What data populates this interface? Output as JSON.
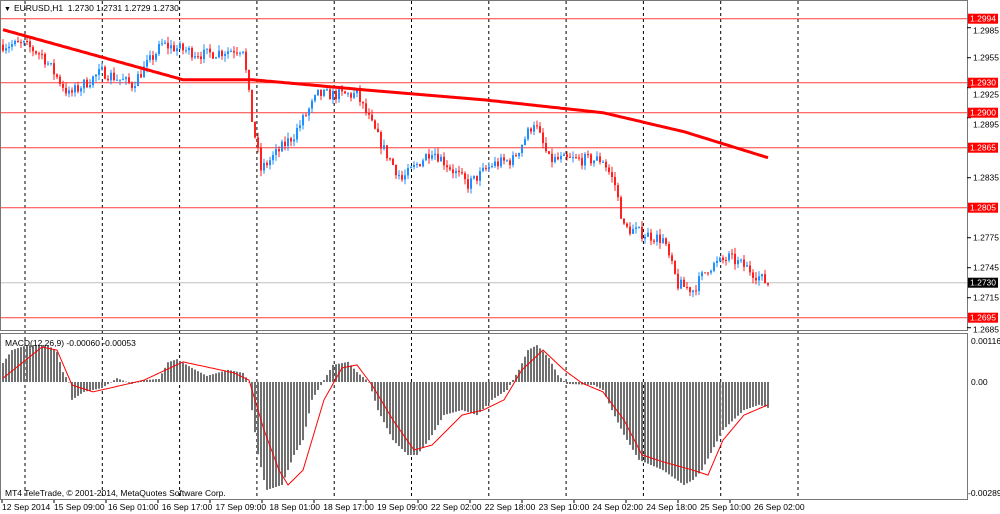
{
  "header": {
    "symbol": "EURUSD,H1",
    "ohlc": "1.2730 1.2731 1.2729 1.2730"
  },
  "macd_label": "MACD(12,26,9) -0.00060 -0.00053",
  "copyright": "MT4 TeleTrade, © 2001-2014, MetaQuotes Software Corp.",
  "colors": {
    "bull": "#1e90ff",
    "bear": "#ff2020",
    "ma": "#ff0000",
    "level": "#ff3b3b",
    "hist": "#707070",
    "signal": "#ff0000"
  },
  "price_axis": {
    "range": [
      1.268,
      1.3012
    ],
    "ticks": [
      "1.2985",
      "1.2955",
      "1.2925",
      "1.2895",
      "1.2835",
      "1.2775",
      "1.2745",
      "1.2715",
      "1.2685"
    ],
    "levels": [
      "1.2994",
      "1.2930",
      "1.2900",
      "1.2865",
      "1.2805",
      "1.2695"
    ],
    "current": "1.2730"
  },
  "macd_axis": {
    "top": "0.00116",
    "zero": "0.00",
    "bottom": "-0.00289"
  },
  "time_labels": [
    "12 Sep 2014",
    "15 Sep 09:00",
    "16 Sep 01:00",
    "16 Sep 17:00",
    "17 Sep 09:00",
    "18 Sep 01:00",
    "18 Sep 17:00",
    "19 Sep 09:00",
    "22 Sep 02:00",
    "22 Sep 18:00",
    "23 Sep 10:00",
    "24 Sep 02:00",
    "24 Sep 18:00",
    "25 Sep 10:00",
    "26 Sep 02:00"
  ],
  "chart_data": {
    "type": "candlestick",
    "bars": 256,
    "close_path": [
      [
        0,
        1.2968
      ],
      [
        7,
        1.2968
      ],
      [
        13,
        1.2958
      ],
      [
        22,
        1.2918
      ],
      [
        33,
        1.2941
      ],
      [
        43,
        1.2928
      ],
      [
        53,
        1.2968
      ],
      [
        67,
        1.2958
      ],
      [
        80,
        1.2965
      ],
      [
        83,
        1.2893
      ],
      [
        86,
        1.2843
      ],
      [
        97,
        1.2878
      ],
      [
        105,
        1.2918
      ],
      [
        118,
        1.2918
      ],
      [
        127,
        1.2863
      ],
      [
        133,
        1.2833
      ],
      [
        143,
        1.2863
      ],
      [
        155,
        1.2828
      ],
      [
        163,
        1.2848
      ],
      [
        170,
        1.2853
      ],
      [
        177,
        1.2891
      ],
      [
        182,
        1.2853
      ],
      [
        200,
        1.2853
      ],
      [
        204,
        1.2828
      ],
      [
        207,
        1.2785
      ],
      [
        220,
        1.2773
      ],
      [
        225,
        1.2728
      ],
      [
        230,
        1.2723
      ],
      [
        235,
        1.2745
      ],
      [
        242,
        1.2755
      ],
      [
        248,
        1.2745
      ],
      [
        255,
        1.2729
      ]
    ],
    "ma_path": [
      [
        0,
        1.2983
      ],
      [
        30,
        1.2958
      ],
      [
        60,
        1.2933
      ],
      [
        83,
        1.2933
      ],
      [
        120,
        1.2923
      ],
      [
        160,
        1.2913
      ],
      [
        200,
        1.29
      ],
      [
        227,
        1.2881
      ],
      [
        255,
        1.2855
      ]
    ],
    "macd_hist": [
      [
        0,
        0.0005
      ],
      [
        3,
        0.00084
      ],
      [
        8,
        0.00097
      ],
      [
        15,
        0.00097
      ],
      [
        18,
        0.00079
      ],
      [
        20,
        0.00026
      ],
      [
        22,
        0
      ],
      [
        23,
        -0.00047
      ],
      [
        27,
        -0.00026
      ],
      [
        33,
        -0.00016
      ],
      [
        38,
        0.0001
      ],
      [
        43,
        -5e-05
      ],
      [
        47,
        5e-05
      ],
      [
        52,
        8e-05
      ],
      [
        55,
        0.00052
      ],
      [
        58,
        0.0006
      ],
      [
        63,
        0.00037
      ],
      [
        68,
        0.00016
      ],
      [
        75,
        0.00032
      ],
      [
        80,
        0.00024
      ],
      [
        82,
        0
      ],
      [
        83,
        -0.00074
      ],
      [
        85,
        -0.0019
      ],
      [
        87,
        -0.00258
      ],
      [
        88,
        -0.00284
      ],
      [
        93,
        -0.00271
      ],
      [
        97,
        -0.00192
      ],
      [
        100,
        -0.00153
      ],
      [
        103,
        -0.00047
      ],
      [
        107,
        5e-05
      ],
      [
        110,
        0.00045
      ],
      [
        115,
        0.00053
      ],
      [
        118,
        0.00026
      ],
      [
        122,
        0
      ],
      [
        125,
        -0.00074
      ],
      [
        130,
        -0.00153
      ],
      [
        135,
        -0.00192
      ],
      [
        138,
        -0.00192
      ],
      [
        142,
        -0.00153
      ],
      [
        147,
        -0.00087
      ],
      [
        153,
        -0.00074
      ],
      [
        158,
        -0.00087
      ],
      [
        163,
        -0.00047
      ],
      [
        168,
        -0.00021
      ],
      [
        172,
        0.00032
      ],
      [
        175,
        0.00084
      ],
      [
        178,
        0.00097
      ],
      [
        182,
        0.00063
      ],
      [
        185,
        0.00018
      ],
      [
        188,
        -5e-05
      ],
      [
        197,
        -8e-05
      ],
      [
        200,
        -0.00021
      ],
      [
        203,
        -0.00074
      ],
      [
        207,
        -0.00139
      ],
      [
        212,
        -0.00205
      ],
      [
        220,
        -0.00232
      ],
      [
        227,
        -0.00271
      ],
      [
        230,
        -0.00258
      ],
      [
        233,
        -0.00232
      ],
      [
        240,
        -0.00126
      ],
      [
        247,
        -0.00074
      ],
      [
        252,
        -0.0006
      ],
      [
        255,
        -0.00068
      ]
    ],
    "macd_signal": [
      [
        0,
        0.0001
      ],
      [
        13,
        0.00092
      ],
      [
        18,
        0.00084
      ],
      [
        23,
        -8e-05
      ],
      [
        30,
        -0.00026
      ],
      [
        40,
        -8e-05
      ],
      [
        47,
        5e-05
      ],
      [
        60,
        0.00053
      ],
      [
        77,
        0.00024
      ],
      [
        82,
        5e-05
      ],
      [
        87,
        -0.00126
      ],
      [
        92,
        -0.00232
      ],
      [
        95,
        -0.00271
      ],
      [
        100,
        -0.00232
      ],
      [
        107,
        -0.00047
      ],
      [
        113,
        0.00037
      ],
      [
        118,
        0.00045
      ],
      [
        123,
        -8e-05
      ],
      [
        130,
        -0.001
      ],
      [
        137,
        -0.00179
      ],
      [
        143,
        -0.00166
      ],
      [
        153,
        -0.00087
      ],
      [
        160,
        -0.00074
      ],
      [
        167,
        -0.00047
      ],
      [
        173,
        0.00032
      ],
      [
        180,
        0.00084
      ],
      [
        187,
        0.00032
      ],
      [
        193,
        -3e-05
      ],
      [
        200,
        -0.00026
      ],
      [
        207,
        -0.001
      ],
      [
        213,
        -0.00192
      ],
      [
        220,
        -0.0021
      ],
      [
        230,
        -0.00232
      ],
      [
        235,
        -0.00245
      ],
      [
        240,
        -0.00153
      ],
      [
        247,
        -0.00087
      ],
      [
        255,
        -0.0006
      ]
    ]
  }
}
